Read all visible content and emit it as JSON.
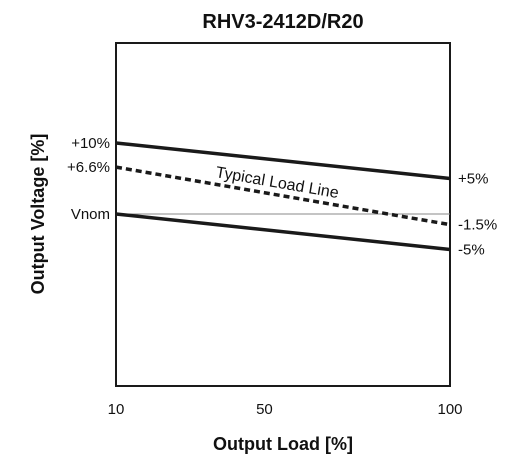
{
  "chart_data": {
    "type": "line",
    "title": "RHV3-2412D/R20",
    "xlabel": "Output Load [%]",
    "ylabel": "Output Voltage [%]",
    "x_ticks": [
      "10",
      "50",
      "100"
    ],
    "x_values": [
      10,
      50,
      100
    ],
    "xlim": [
      10,
      100
    ],
    "left_y_labels": [
      "+10%",
      "+6.6%",
      "Vnom"
    ],
    "right_y_labels": [
      "+5%",
      "-1.5%",
      "-5%"
    ],
    "series": [
      {
        "style": "solid",
        "x": [
          10,
          100
        ],
        "y": [
          10,
          5
        ]
      },
      {
        "name": "Typical Load Line",
        "style": "dashed",
        "x": [
          10,
          100
        ],
        "y": [
          6.6,
          -1.5
        ]
      },
      {
        "style": "solid",
        "x": [
          10,
          100
        ],
        "y": [
          0,
          -5
        ]
      }
    ],
    "reference_line": {
      "y": 0,
      "label": "Vnom"
    },
    "grid": false,
    "colors": {
      "line": "#1a1a1a",
      "reference": "#888888",
      "frame": "#1a1a1a"
    }
  }
}
